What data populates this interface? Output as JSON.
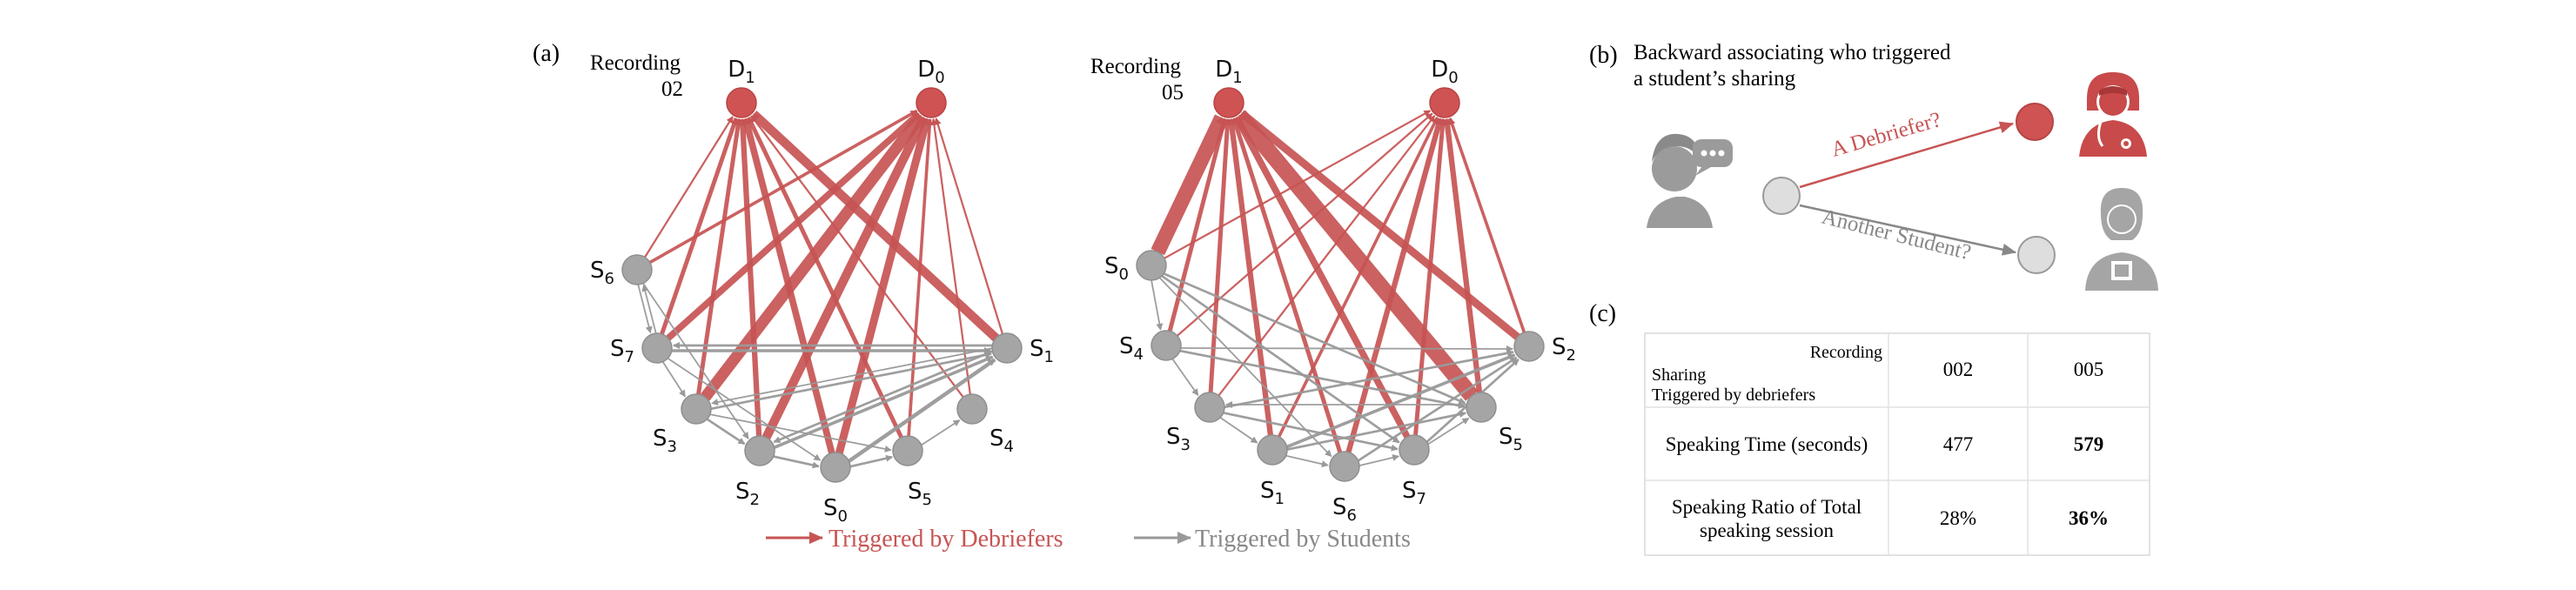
{
  "panel_a": {
    "label": "(a)",
    "legend": {
      "debriefers": "Triggered by Debriefers",
      "students": "Triggered by Students"
    },
    "colors": {
      "debriefer": "#c75454",
      "student": "#999999",
      "debriefer_node": "#cf5353",
      "student_node": "#a5a5a5"
    },
    "graphs": [
      {
        "id": "02",
        "title_line1": "Recording",
        "title_line2": "02",
        "nodes": [
          {
            "id": "D1",
            "base": "D",
            "sub": "1",
            "kind": "debriefer"
          },
          {
            "id": "D0",
            "base": "D",
            "sub": "0",
            "kind": "debriefer"
          },
          {
            "id": "S6",
            "base": "S",
            "sub": "6",
            "kind": "student"
          },
          {
            "id": "S7",
            "base": "S",
            "sub": "7",
            "kind": "student"
          },
          {
            "id": "S1",
            "base": "S",
            "sub": "1",
            "kind": "student"
          },
          {
            "id": "S3",
            "base": "S",
            "sub": "3",
            "kind": "student"
          },
          {
            "id": "S4",
            "base": "S",
            "sub": "4",
            "kind": "student"
          },
          {
            "id": "S2",
            "base": "S",
            "sub": "2",
            "kind": "student"
          },
          {
            "id": "S0",
            "base": "S",
            "sub": "0",
            "kind": "student"
          },
          {
            "id": "S5",
            "base": "S",
            "sub": "5",
            "kind": "student"
          }
        ],
        "edges": [
          {
            "from": "S6",
            "to": "D0",
            "w": 2,
            "kind": "d"
          },
          {
            "from": "S6",
            "to": "D1",
            "w": 1,
            "kind": "d"
          },
          {
            "from": "S7",
            "to": "D0",
            "w": 5,
            "kind": "d"
          },
          {
            "from": "S7",
            "to": "D1",
            "w": 3,
            "kind": "d"
          },
          {
            "from": "S3",
            "to": "D0",
            "w": 9,
            "kind": "d"
          },
          {
            "from": "S3",
            "to": "D1",
            "w": 3,
            "kind": "d"
          },
          {
            "from": "S2",
            "to": "D0",
            "w": 7,
            "kind": "d"
          },
          {
            "from": "S2",
            "to": "D1",
            "w": 4,
            "kind": "d"
          },
          {
            "from": "S0",
            "to": "D0",
            "w": 6,
            "kind": "d"
          },
          {
            "from": "S0",
            "to": "D1",
            "w": 5,
            "kind": "d"
          },
          {
            "from": "S5",
            "to": "D1",
            "w": 3,
            "kind": "d"
          },
          {
            "from": "S5",
            "to": "D0",
            "w": 2,
            "kind": "d"
          },
          {
            "from": "S1",
            "to": "D1",
            "w": 7,
            "kind": "d"
          },
          {
            "from": "S1",
            "to": "D0",
            "w": 1,
            "kind": "d"
          },
          {
            "from": "S4",
            "to": "D1",
            "w": 1,
            "kind": "d"
          },
          {
            "from": "S4",
            "to": "D0",
            "w": 1,
            "kind": "d"
          },
          {
            "from": "S7",
            "to": "S1",
            "w": 3,
            "kind": "s"
          },
          {
            "from": "S1",
            "to": "S7",
            "w": 2,
            "kind": "s"
          },
          {
            "from": "S3",
            "to": "S1",
            "w": 2,
            "kind": "s"
          },
          {
            "from": "S2",
            "to": "S1",
            "w": 3,
            "kind": "s"
          },
          {
            "from": "S0",
            "to": "S1",
            "w": 4,
            "kind": "s"
          },
          {
            "from": "S1",
            "to": "S2",
            "w": 2,
            "kind": "s"
          },
          {
            "from": "S7",
            "to": "S3",
            "w": 1,
            "kind": "s"
          },
          {
            "from": "S6",
            "to": "S7",
            "w": 1,
            "kind": "s"
          },
          {
            "from": "S7",
            "to": "S6",
            "w": 1,
            "kind": "s"
          },
          {
            "from": "S3",
            "to": "S2",
            "w": 2,
            "kind": "s"
          },
          {
            "from": "S2",
            "to": "S0",
            "w": 2,
            "kind": "s"
          },
          {
            "from": "S0",
            "to": "S5",
            "w": 2,
            "kind": "s"
          },
          {
            "from": "S5",
            "to": "S4",
            "w": 1,
            "kind": "s"
          },
          {
            "from": "S7",
            "to": "S0",
            "w": 1,
            "kind": "s"
          },
          {
            "from": "S6",
            "to": "S2",
            "w": 1,
            "kind": "s"
          },
          {
            "from": "S3",
            "to": "S5",
            "w": 1,
            "kind": "s"
          },
          {
            "from": "S1",
            "to": "S3",
            "w": 1,
            "kind": "s"
          }
        ]
      },
      {
        "id": "05",
        "title_line1": "Recording",
        "title_line2": "05",
        "nodes": [
          {
            "id": "D1",
            "base": "D",
            "sub": "1",
            "kind": "debriefer"
          },
          {
            "id": "D0",
            "base": "D",
            "sub": "0",
            "kind": "debriefer"
          },
          {
            "id": "S0",
            "base": "S",
            "sub": "0",
            "kind": "student"
          },
          {
            "id": "S4",
            "base": "S",
            "sub": "4",
            "kind": "student"
          },
          {
            "id": "S2",
            "base": "S",
            "sub": "2",
            "kind": "student"
          },
          {
            "id": "S3",
            "base": "S",
            "sub": "3",
            "kind": "student"
          },
          {
            "id": "S5",
            "base": "S",
            "sub": "5",
            "kind": "student"
          },
          {
            "id": "S1",
            "base": "S",
            "sub": "1",
            "kind": "student"
          },
          {
            "id": "S6",
            "base": "S",
            "sub": "6",
            "kind": "student"
          },
          {
            "id": "S7",
            "base": "S",
            "sub": "7",
            "kind": "student"
          }
        ],
        "edges": [
          {
            "from": "S0",
            "to": "D1",
            "w": 12,
            "kind": "d"
          },
          {
            "from": "S0",
            "to": "D0",
            "w": 1,
            "kind": "d"
          },
          {
            "from": "S4",
            "to": "D1",
            "w": 3,
            "kind": "d"
          },
          {
            "from": "S4",
            "to": "D0",
            "w": 1,
            "kind": "d"
          },
          {
            "from": "S3",
            "to": "D1",
            "w": 3,
            "kind": "d"
          },
          {
            "from": "S3",
            "to": "D0",
            "w": 1,
            "kind": "d"
          },
          {
            "from": "S1",
            "to": "D1",
            "w": 4,
            "kind": "d"
          },
          {
            "from": "S1",
            "to": "D0",
            "w": 2,
            "kind": "d"
          },
          {
            "from": "S6",
            "to": "D1",
            "w": 3,
            "kind": "d"
          },
          {
            "from": "S6",
            "to": "D0",
            "w": 4,
            "kind": "d"
          },
          {
            "from": "S7",
            "to": "D1",
            "w": 5,
            "kind": "d"
          },
          {
            "from": "S7",
            "to": "D0",
            "w": 3,
            "kind": "d"
          },
          {
            "from": "S5",
            "to": "D1",
            "w": 13,
            "kind": "d"
          },
          {
            "from": "S5",
            "to": "D0",
            "w": 4,
            "kind": "d"
          },
          {
            "from": "S2",
            "to": "D1",
            "w": 6,
            "kind": "d"
          },
          {
            "from": "S2",
            "to": "D0",
            "w": 2,
            "kind": "d"
          },
          {
            "from": "S0",
            "to": "S5",
            "w": 2,
            "kind": "s"
          },
          {
            "from": "S0",
            "to": "S7",
            "w": 2,
            "kind": "s"
          },
          {
            "from": "S0",
            "to": "S6",
            "w": 1,
            "kind": "s"
          },
          {
            "from": "S4",
            "to": "S5",
            "w": 2,
            "kind": "s"
          },
          {
            "from": "S4",
            "to": "S2",
            "w": 1,
            "kind": "s"
          },
          {
            "from": "S3",
            "to": "S2",
            "w": 2,
            "kind": "s"
          },
          {
            "from": "S3",
            "to": "S7",
            "w": 2,
            "kind": "s"
          },
          {
            "from": "S1",
            "to": "S2",
            "w": 3,
            "kind": "s"
          },
          {
            "from": "S1",
            "to": "S5",
            "w": 2,
            "kind": "s"
          },
          {
            "from": "S6",
            "to": "S2",
            "w": 2,
            "kind": "s"
          },
          {
            "from": "S7",
            "to": "S2",
            "w": 2,
            "kind": "s"
          },
          {
            "from": "S5",
            "to": "S3",
            "w": 1,
            "kind": "s"
          },
          {
            "from": "S4",
            "to": "S3",
            "w": 1,
            "kind": "s"
          },
          {
            "from": "S3",
            "to": "S1",
            "w": 1,
            "kind": "s"
          },
          {
            "from": "S1",
            "to": "S6",
            "w": 1,
            "kind": "s"
          },
          {
            "from": "S6",
            "to": "S7",
            "w": 1,
            "kind": "s"
          },
          {
            "from": "S7",
            "to": "S5",
            "w": 1,
            "kind": "s"
          },
          {
            "from": "S0",
            "to": "S4",
            "w": 1,
            "kind": "s"
          }
        ]
      }
    ]
  },
  "panel_b": {
    "label": "(b)",
    "title_line1": "Backward associating who triggered",
    "title_line2": "a student’s sharing",
    "label_debriefer": "A Debriefer?",
    "label_student": "Another Student?"
  },
  "panel_c": {
    "label": "(c)",
    "header_col": "Recording",
    "header_row_line1": "Sharing",
    "header_row_line2": "Triggered by debriefers",
    "columns": [
      "002",
      "005"
    ],
    "rows": [
      {
        "label_line1": "Speaking Time (seconds)",
        "label_line2": "",
        "values": [
          "477",
          "579"
        ],
        "bold_index": 1
      },
      {
        "label_line1": "Speaking Ratio of Total",
        "label_line2": "speaking session",
        "values": [
          "28%",
          "36%"
        ],
        "bold_index": 1
      }
    ]
  }
}
